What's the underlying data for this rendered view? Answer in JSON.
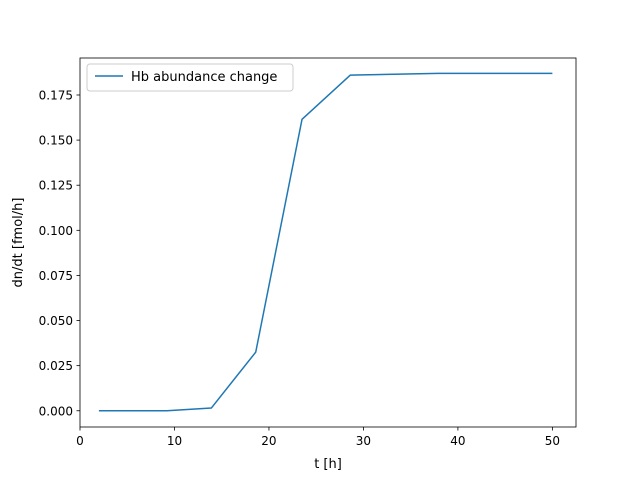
{
  "chart_data": {
    "type": "line",
    "title": "",
    "xlabel": "t [h]",
    "ylabel": "dn/dt [fmol/h]",
    "xlim": [
      0,
      52.5
    ],
    "ylim": [
      -0.009,
      0.1955
    ],
    "xticks": [
      0,
      10,
      20,
      30,
      40,
      50
    ],
    "xtick_labels": [
      "0",
      "10",
      "20",
      "30",
      "40",
      "50"
    ],
    "yticks": [
      0.0,
      0.025,
      0.05,
      0.075,
      0.1,
      0.125,
      0.15,
      0.175
    ],
    "ytick_labels": [
      "0.000",
      "0.025",
      "0.050",
      "0.075",
      "0.100",
      "0.125",
      "0.150",
      "0.175"
    ],
    "grid": false,
    "legend_position": "top-left",
    "series": [
      {
        "name": "Hb abundance change",
        "color": "#1f77b4",
        "x": [
          2,
          9.2,
          13.9,
          18.6,
          23.5,
          28.6,
          37.9,
          50
        ],
        "y": [
          0.0,
          0.0,
          0.0015,
          0.0325,
          0.1615,
          0.186,
          0.187,
          0.187
        ]
      }
    ]
  }
}
